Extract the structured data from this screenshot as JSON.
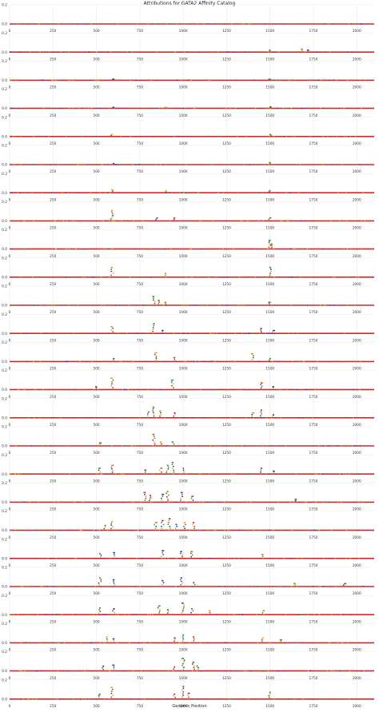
{
  "chart_data": {
    "type": "scatter",
    "title": "Attributions for GATA2 Affinity Catalog",
    "xlabel": "Genomic Position",
    "ylabel": "",
    "panel_count": 25,
    "xlim": [
      0,
      2100
    ],
    "ylim": [
      -0.05,
      0.2
    ],
    "x_ticks": [
      0,
      250,
      500,
      750,
      1000,
      1250,
      1500,
      1750,
      2000
    ],
    "x_tick_labels": [
      "0",
      "250",
      "500",
      "750",
      "1000",
      "1250",
      "1500",
      "1750",
      "2000"
    ],
    "y_ticks": [
      0.0,
      0.2
    ],
    "y_tick_labels": [
      "0.0",
      "0.2"
    ],
    "first_panel_y_tick_labels": [
      "0.0",
      "0.2"
    ],
    "last_panel_y_tick_labels": [
      "0.0",
      "0.2"
    ],
    "grid": true,
    "legend": "none",
    "base_colors": {
      "A": "#2ca02c",
      "C": "#1f3fbf",
      "G": "#f2a900",
      "T": "#d62728"
    },
    "baseline_color": "#d62728",
    "peaks": [
      [],
      [
        [
          1680,
          0.03
        ],
        [
          1720,
          0.02
        ],
        [
          1500,
          0.02
        ]
      ],
      [
        [
          600,
          0.01
        ],
        [
          1500,
          0.01
        ]
      ],
      [
        [
          600,
          0.01
        ],
        [
          900,
          0.01
        ],
        [
          1500,
          0.015
        ]
      ],
      [
        [
          590,
          0.02
        ],
        [
          1500,
          0.02
        ]
      ],
      [
        [
          600,
          0.01
        ],
        [
          1500,
          0.02
        ]
      ],
      [
        [
          590,
          0.03
        ],
        [
          900,
          0.02
        ],
        [
          1500,
          0.02
        ]
      ],
      [
        [
          590,
          0.11
        ],
        [
          850,
          0.03
        ],
        [
          950,
          0.03
        ],
        [
          1500,
          0.03
        ]
      ],
      [
        [
          1500,
          0.09
        ],
        [
          1510,
          0.05
        ]
      ],
      [
        [
          590,
          0.1
        ],
        [
          900,
          0.04
        ],
        [
          1500,
          0.1
        ]
      ],
      [
        [
          830,
          0.09
        ],
        [
          860,
          0.05
        ],
        [
          900,
          0.03
        ],
        [
          1500,
          0.03
        ]
      ],
      [
        [
          590,
          0.07
        ],
        [
          830,
          0.1
        ],
        [
          880,
          0.03
        ],
        [
          1450,
          0.05
        ],
        [
          1520,
          0.03
        ]
      ],
      [
        [
          600,
          0.03
        ],
        [
          840,
          0.09
        ],
        [
          950,
          0.04
        ],
        [
          1400,
          0.08
        ],
        [
          1500,
          0.03
        ]
      ],
      [
        [
          500,
          0.03
        ],
        [
          590,
          0.12
        ],
        [
          940,
          0.1
        ],
        [
          1450,
          0.07
        ],
        [
          1520,
          0.03
        ]
      ],
      [
        [
          800,
          0.06
        ],
        [
          830,
          0.11
        ],
        [
          870,
          0.07
        ],
        [
          950,
          0.05
        ],
        [
          1400,
          0.05
        ],
        [
          1450,
          0.08
        ],
        [
          1520,
          0.03
        ]
      ],
      [
        [
          520,
          0.03
        ],
        [
          830,
          0.12
        ],
        [
          870,
          0.04
        ],
        [
          940,
          0.04
        ]
      ],
      [
        [
          520,
          0.06
        ],
        [
          590,
          0.09
        ],
        [
          780,
          0.04
        ],
        [
          870,
          0.06
        ],
        [
          910,
          0.09
        ],
        [
          940,
          0.12
        ],
        [
          1000,
          0.06
        ],
        [
          1450,
          0.06
        ],
        [
          1520,
          0.03
        ]
      ],
      [
        [
          780,
          0.1
        ],
        [
          810,
          0.07
        ],
        [
          880,
          0.08
        ],
        [
          910,
          0.11
        ],
        [
          990,
          0.1
        ],
        [
          1050,
          0.06
        ],
        [
          1650,
          0.03
        ]
      ],
      [
        [
          550,
          0.05
        ],
        [
          590,
          0.09
        ],
        [
          840,
          0.08
        ],
        [
          880,
          0.1
        ],
        [
          920,
          0.12
        ],
        [
          960,
          0.06
        ],
        [
          1010,
          0.08
        ],
        [
          1060,
          0.08
        ]
      ],
      [
        [
          520,
          0.05
        ],
        [
          600,
          0.06
        ],
        [
          880,
          0.08
        ],
        [
          990,
          0.07
        ],
        [
          1050,
          0.07
        ],
        [
          1460,
          0.04
        ]
      ],
      [
        [
          520,
          0.09
        ],
        [
          600,
          0.07
        ],
        [
          880,
          0.06
        ],
        [
          990,
          0.09
        ],
        [
          1060,
          0.04
        ],
        [
          1640,
          0.03
        ],
        [
          1930,
          0.03
        ]
      ],
      [
        [
          520,
          0.07
        ],
        [
          600,
          0.06
        ],
        [
          860,
          0.09
        ],
        [
          910,
          0.05
        ],
        [
          1000,
          0.12
        ],
        [
          1050,
          0.06
        ],
        [
          1150,
          0.04
        ],
        [
          1460,
          0.04
        ]
      ],
      [
        [
          560,
          0.06
        ],
        [
          600,
          0.04
        ],
        [
          950,
          0.05
        ],
        [
          1000,
          0.08
        ],
        [
          1060,
          0.06
        ],
        [
          1460,
          0.05
        ],
        [
          1560,
          0.03
        ]
      ],
      [
        [
          540,
          0.05
        ],
        [
          600,
          0.06
        ],
        [
          950,
          0.04
        ],
        [
          1000,
          0.13
        ],
        [
          1060,
          0.09
        ],
        [
          1080,
          0.05
        ]
      ],
      [
        [
          520,
          0.05
        ],
        [
          590,
          0.12
        ],
        [
          950,
          0.05
        ],
        [
          1000,
          0.13
        ],
        [
          1030,
          0.06
        ],
        [
          1500,
          0.07
        ]
      ]
    ]
  }
}
